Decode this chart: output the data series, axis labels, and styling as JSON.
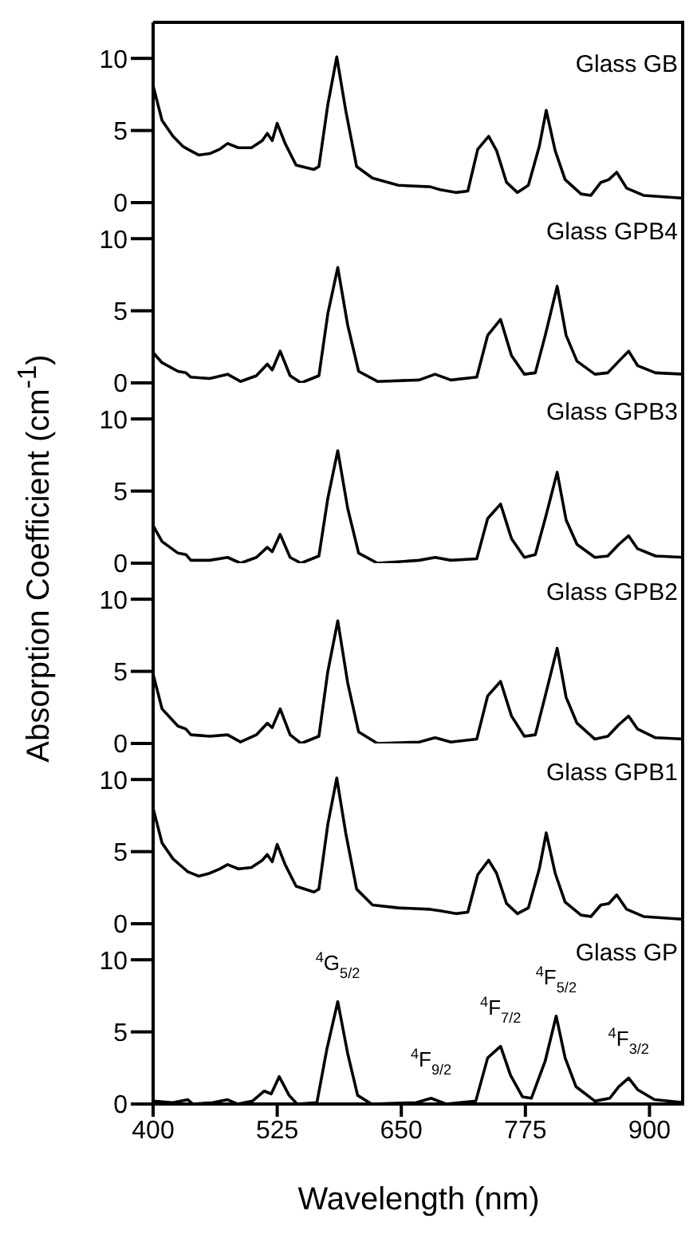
{
  "chart_data": [
    {
      "type": "line",
      "title": "Glass GB",
      "ylabel": "Absorption Coefficient (cm$^{-1}$)",
      "xlim": [
        400,
        935
      ],
      "ylim": [
        0,
        12.5
      ],
      "yticks": [
        0,
        5,
        10
      ],
      "tick_labels": "y",
      "series": [
        {
          "color": "#000000",
          "x": [
            400,
            409,
            420,
            430,
            435,
            446,
            457,
            467,
            475,
            486,
            499,
            510,
            515,
            520,
            525,
            533,
            544,
            562,
            567,
            576,
            585,
            594,
            605,
            621,
            647,
            679,
            689,
            705,
            717,
            727,
            738,
            746,
            756,
            767,
            778,
            789,
            796,
            805,
            815,
            831,
            841,
            851,
            859,
            867,
            877,
            894,
            935
          ],
          "values": [
            8.1,
            5.7,
            4.6,
            3.9,
            3.7,
            3.3,
            3.4,
            3.7,
            4.1,
            3.8,
            3.8,
            4.3,
            4.8,
            4.3,
            5.5,
            4.1,
            2.6,
            2.3,
            2.5,
            6.8,
            10.1,
            6.4,
            2.5,
            1.7,
            1.2,
            1.1,
            0.9,
            0.7,
            0.8,
            3.7,
            4.6,
            3.6,
            1.4,
            0.7,
            1.2,
            3.9,
            6.4,
            3.6,
            1.6,
            0.6,
            0.5,
            1.4,
            1.6,
            2.1,
            1.0,
            0.5,
            0.3
          ]
        }
      ]
    },
    {
      "type": "line",
      "title": "Glass GPB4",
      "xlim": [
        400,
        935
      ],
      "ylim": [
        0,
        12.5
      ],
      "yticks": [
        0,
        5,
        10
      ],
      "tick_labels": "y",
      "series": [
        {
          "color": "#000000",
          "x": [
            400,
            409,
            425,
            433,
            438,
            457,
            475,
            488,
            504,
            515,
            520,
            528,
            538,
            549,
            567,
            576,
            586,
            596,
            607,
            626,
            668,
            684,
            700,
            726,
            737,
            750,
            761,
            774,
            785,
            795,
            807,
            816,
            827,
            845,
            858,
            869,
            879,
            888,
            906,
            935
          ],
          "values": [
            2.1,
            1.4,
            0.8,
            0.7,
            0.4,
            0.3,
            0.6,
            0.1,
            0.5,
            1.3,
            0.9,
            2.2,
            0.5,
            0.0,
            0.5,
            4.8,
            8.0,
            4.0,
            0.8,
            0.1,
            0.2,
            0.6,
            0.2,
            0.4,
            3.3,
            4.4,
            1.9,
            0.6,
            0.7,
            3.3,
            6.7,
            3.3,
            1.5,
            0.6,
            0.7,
            1.5,
            2.2,
            1.2,
            0.7,
            0.6
          ]
        }
      ]
    },
    {
      "type": "line",
      "title": "Glass GPB3",
      "xlim": [
        400,
        935
      ],
      "ylim": [
        0,
        12.5
      ],
      "yticks": [
        0,
        5,
        10
      ],
      "tick_labels": "y",
      "series": [
        {
          "color": "#000000",
          "x": [
            400,
            409,
            425,
            433,
            438,
            457,
            475,
            488,
            504,
            515,
            520,
            528,
            538,
            549,
            567,
            576,
            586,
            596,
            607,
            626,
            668,
            684,
            700,
            726,
            737,
            750,
            761,
            774,
            785,
            795,
            807,
            816,
            827,
            845,
            858,
            869,
            879,
            888,
            906,
            935
          ],
          "values": [
            2.6,
            1.5,
            0.7,
            0.6,
            0.2,
            0.2,
            0.4,
            0.0,
            0.4,
            1.1,
            0.8,
            2.0,
            0.4,
            0.0,
            0.5,
            4.5,
            7.8,
            3.8,
            0.7,
            0.0,
            0.2,
            0.4,
            0.2,
            0.3,
            3.1,
            4.1,
            1.7,
            0.4,
            0.6,
            3.1,
            6.3,
            3.0,
            1.3,
            0.4,
            0.5,
            1.3,
            1.9,
            1.0,
            0.5,
            0.4
          ]
        }
      ]
    },
    {
      "type": "line",
      "title": "Glass GPB2",
      "xlim": [
        400,
        935
      ],
      "ylim": [
        0,
        12.5
      ],
      "yticks": [
        0,
        5,
        10
      ],
      "tick_labels": "y",
      "series": [
        {
          "color": "#000000",
          "x": [
            400,
            409,
            425,
            433,
            438,
            457,
            475,
            488,
            504,
            515,
            520,
            528,
            538,
            549,
            567,
            576,
            586,
            596,
            607,
            626,
            668,
            684,
            700,
            726,
            737,
            750,
            761,
            774,
            785,
            795,
            807,
            816,
            827,
            845,
            858,
            869,
            879,
            888,
            906,
            935
          ],
          "values": [
            4.8,
            2.4,
            1.2,
            1.0,
            0.6,
            0.5,
            0.6,
            0.1,
            0.6,
            1.4,
            1.1,
            2.4,
            0.6,
            0.0,
            0.5,
            5.0,
            8.5,
            4.2,
            0.8,
            0.0,
            0.1,
            0.4,
            0.1,
            0.3,
            3.3,
            4.3,
            1.9,
            0.5,
            0.6,
            3.3,
            6.6,
            3.2,
            1.4,
            0.3,
            0.5,
            1.3,
            1.9,
            1.0,
            0.4,
            0.3
          ]
        }
      ]
    },
    {
      "type": "line",
      "title": "Glass GPB1",
      "xlim": [
        400,
        935
      ],
      "ylim": [
        0,
        12.5
      ],
      "yticks": [
        0,
        5,
        10
      ],
      "tick_labels": "y",
      "series": [
        {
          "color": "#000000",
          "x": [
            400,
            409,
            420,
            430,
            435,
            446,
            457,
            467,
            475,
            486,
            499,
            510,
            515,
            520,
            525,
            533,
            544,
            562,
            567,
            576,
            585,
            594,
            605,
            621,
            647,
            679,
            689,
            705,
            717,
            727,
            738,
            746,
            756,
            767,
            778,
            789,
            796,
            805,
            815,
            831,
            841,
            851,
            859,
            867,
            877,
            894,
            935
          ],
          "values": [
            8.0,
            5.6,
            4.5,
            3.9,
            3.6,
            3.3,
            3.5,
            3.8,
            4.1,
            3.8,
            3.9,
            4.4,
            4.8,
            4.3,
            5.5,
            4.1,
            2.6,
            2.2,
            2.4,
            6.9,
            10.1,
            6.3,
            2.4,
            1.3,
            1.1,
            1.0,
            0.9,
            0.7,
            0.8,
            3.4,
            4.4,
            3.5,
            1.4,
            0.7,
            1.1,
            3.8,
            6.3,
            3.5,
            1.5,
            0.6,
            0.5,
            1.3,
            1.4,
            2.0,
            1.0,
            0.5,
            0.3
          ]
        }
      ]
    },
    {
      "type": "line",
      "title": "Glass GP",
      "xlabel": "Wavelength (nm)",
      "xlim": [
        400,
        935
      ],
      "ylim": [
        0,
        12.5
      ],
      "xticks": [
        400,
        525,
        650,
        775,
        900
      ],
      "yticks": [
        0,
        5,
        10
      ],
      "annotations": [
        {
          "text": "$^{4}$G$_{5/2}$",
          "x": 586,
          "y": 7.1
        },
        {
          "text": "$^{4}$F$_{9/2}$",
          "x": 680,
          "y": 0.4
        },
        {
          "text": "$^{4}$F$_{7/2}$",
          "x": 750,
          "y": 4.0
        },
        {
          "text": "$^{4}$F$_{5/2}$",
          "x": 806,
          "y": 6.1
        },
        {
          "text": "$^{4}$F$_{3/2}$",
          "x": 879,
          "y": 1.8
        }
      ],
      "series": [
        {
          "color": "#000000",
          "x": [
            400,
            420,
            435,
            440,
            460,
            475,
            485,
            500,
            512,
            519,
            527,
            537,
            545,
            565,
            575,
            586,
            596,
            606,
            620,
            665,
            680,
            695,
            725,
            737,
            750,
            760,
            772,
            781,
            795,
            806,
            815,
            826,
            845,
            860,
            869,
            879,
            888,
            905,
            935
          ],
          "values": [
            0.2,
            0.1,
            0.3,
            0.0,
            0.1,
            0.3,
            0.0,
            0.2,
            0.9,
            0.7,
            1.9,
            0.6,
            0.0,
            0.1,
            3.8,
            7.1,
            3.5,
            0.6,
            0.0,
            0.1,
            0.4,
            0.0,
            0.2,
            3.2,
            4.0,
            2.0,
            0.5,
            0.4,
            3.0,
            6.1,
            3.2,
            1.2,
            0.2,
            0.4,
            1.2,
            1.8,
            1.0,
            0.3,
            0.1
          ]
        }
      ]
    }
  ]
}
